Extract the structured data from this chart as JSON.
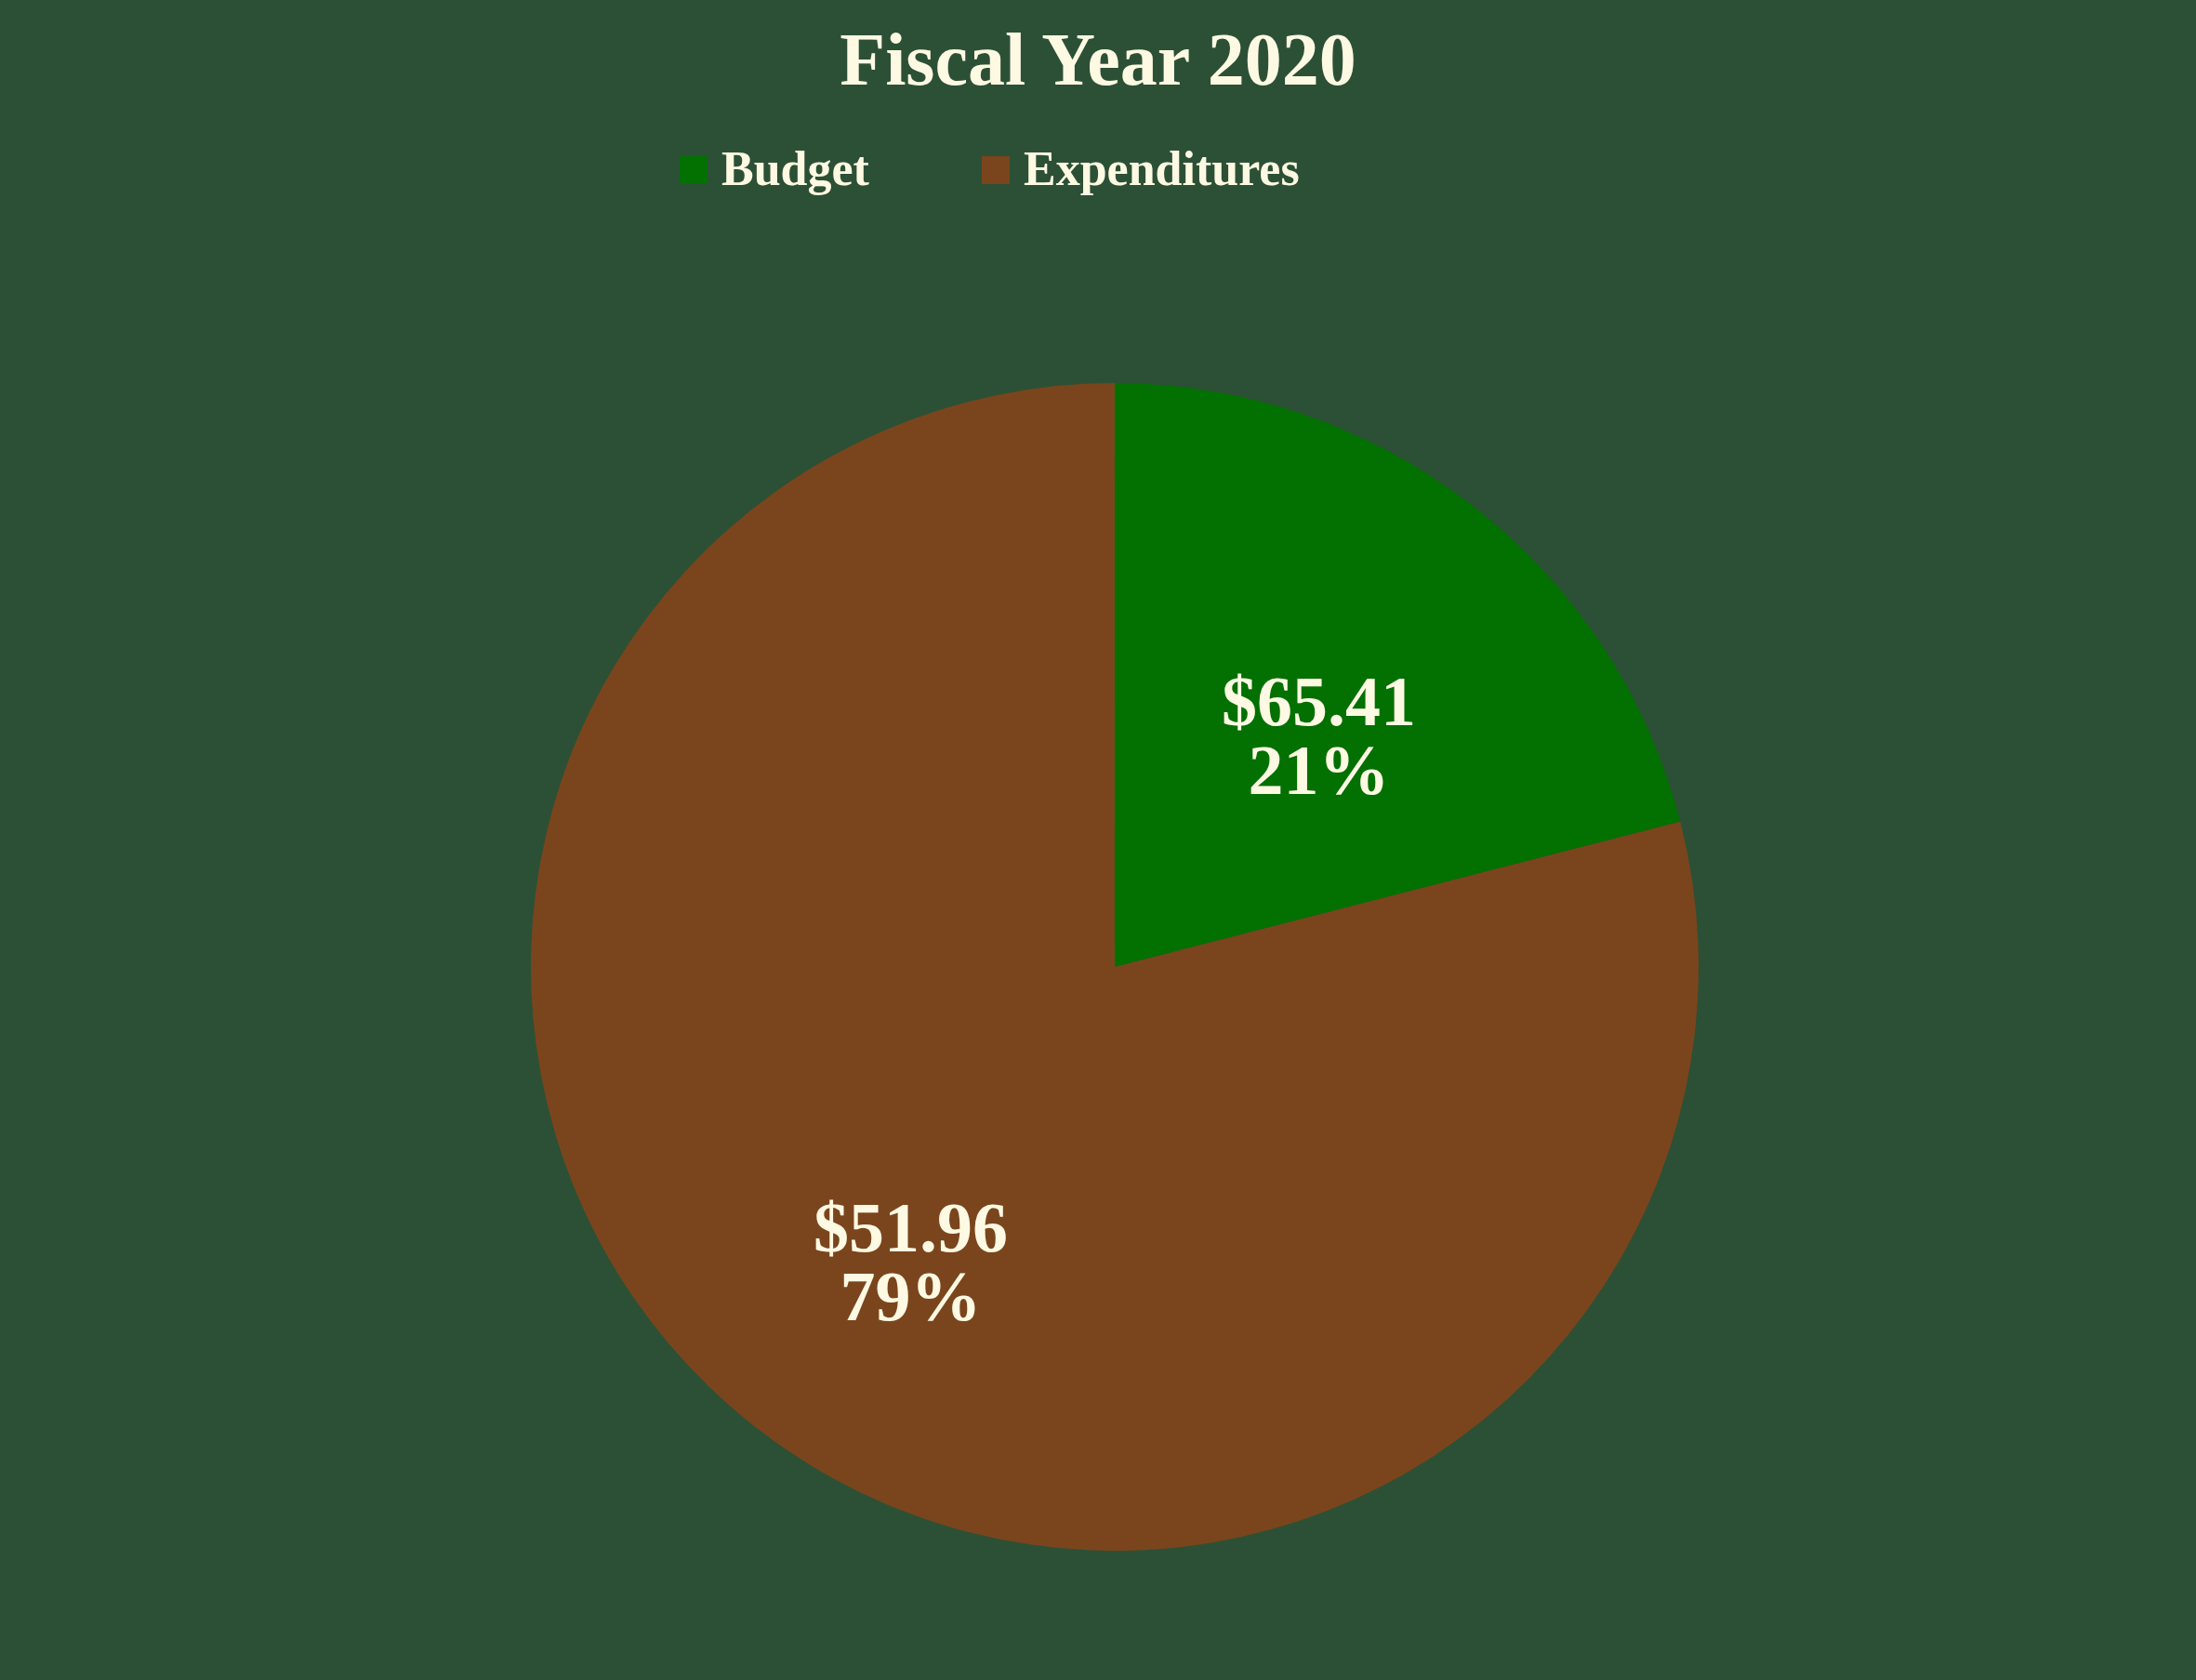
{
  "chart_data": {
    "type": "pie",
    "title": "Fiscal Year 2020",
    "categories": [
      "Budget",
      "Expenditures"
    ],
    "values": [
      21,
      79
    ],
    "value_labels": [
      "$65.41\n21%",
      "$51.96\n79%"
    ],
    "colors": [
      "#037002",
      "#7a451d"
    ],
    "legend": "top"
  }
}
